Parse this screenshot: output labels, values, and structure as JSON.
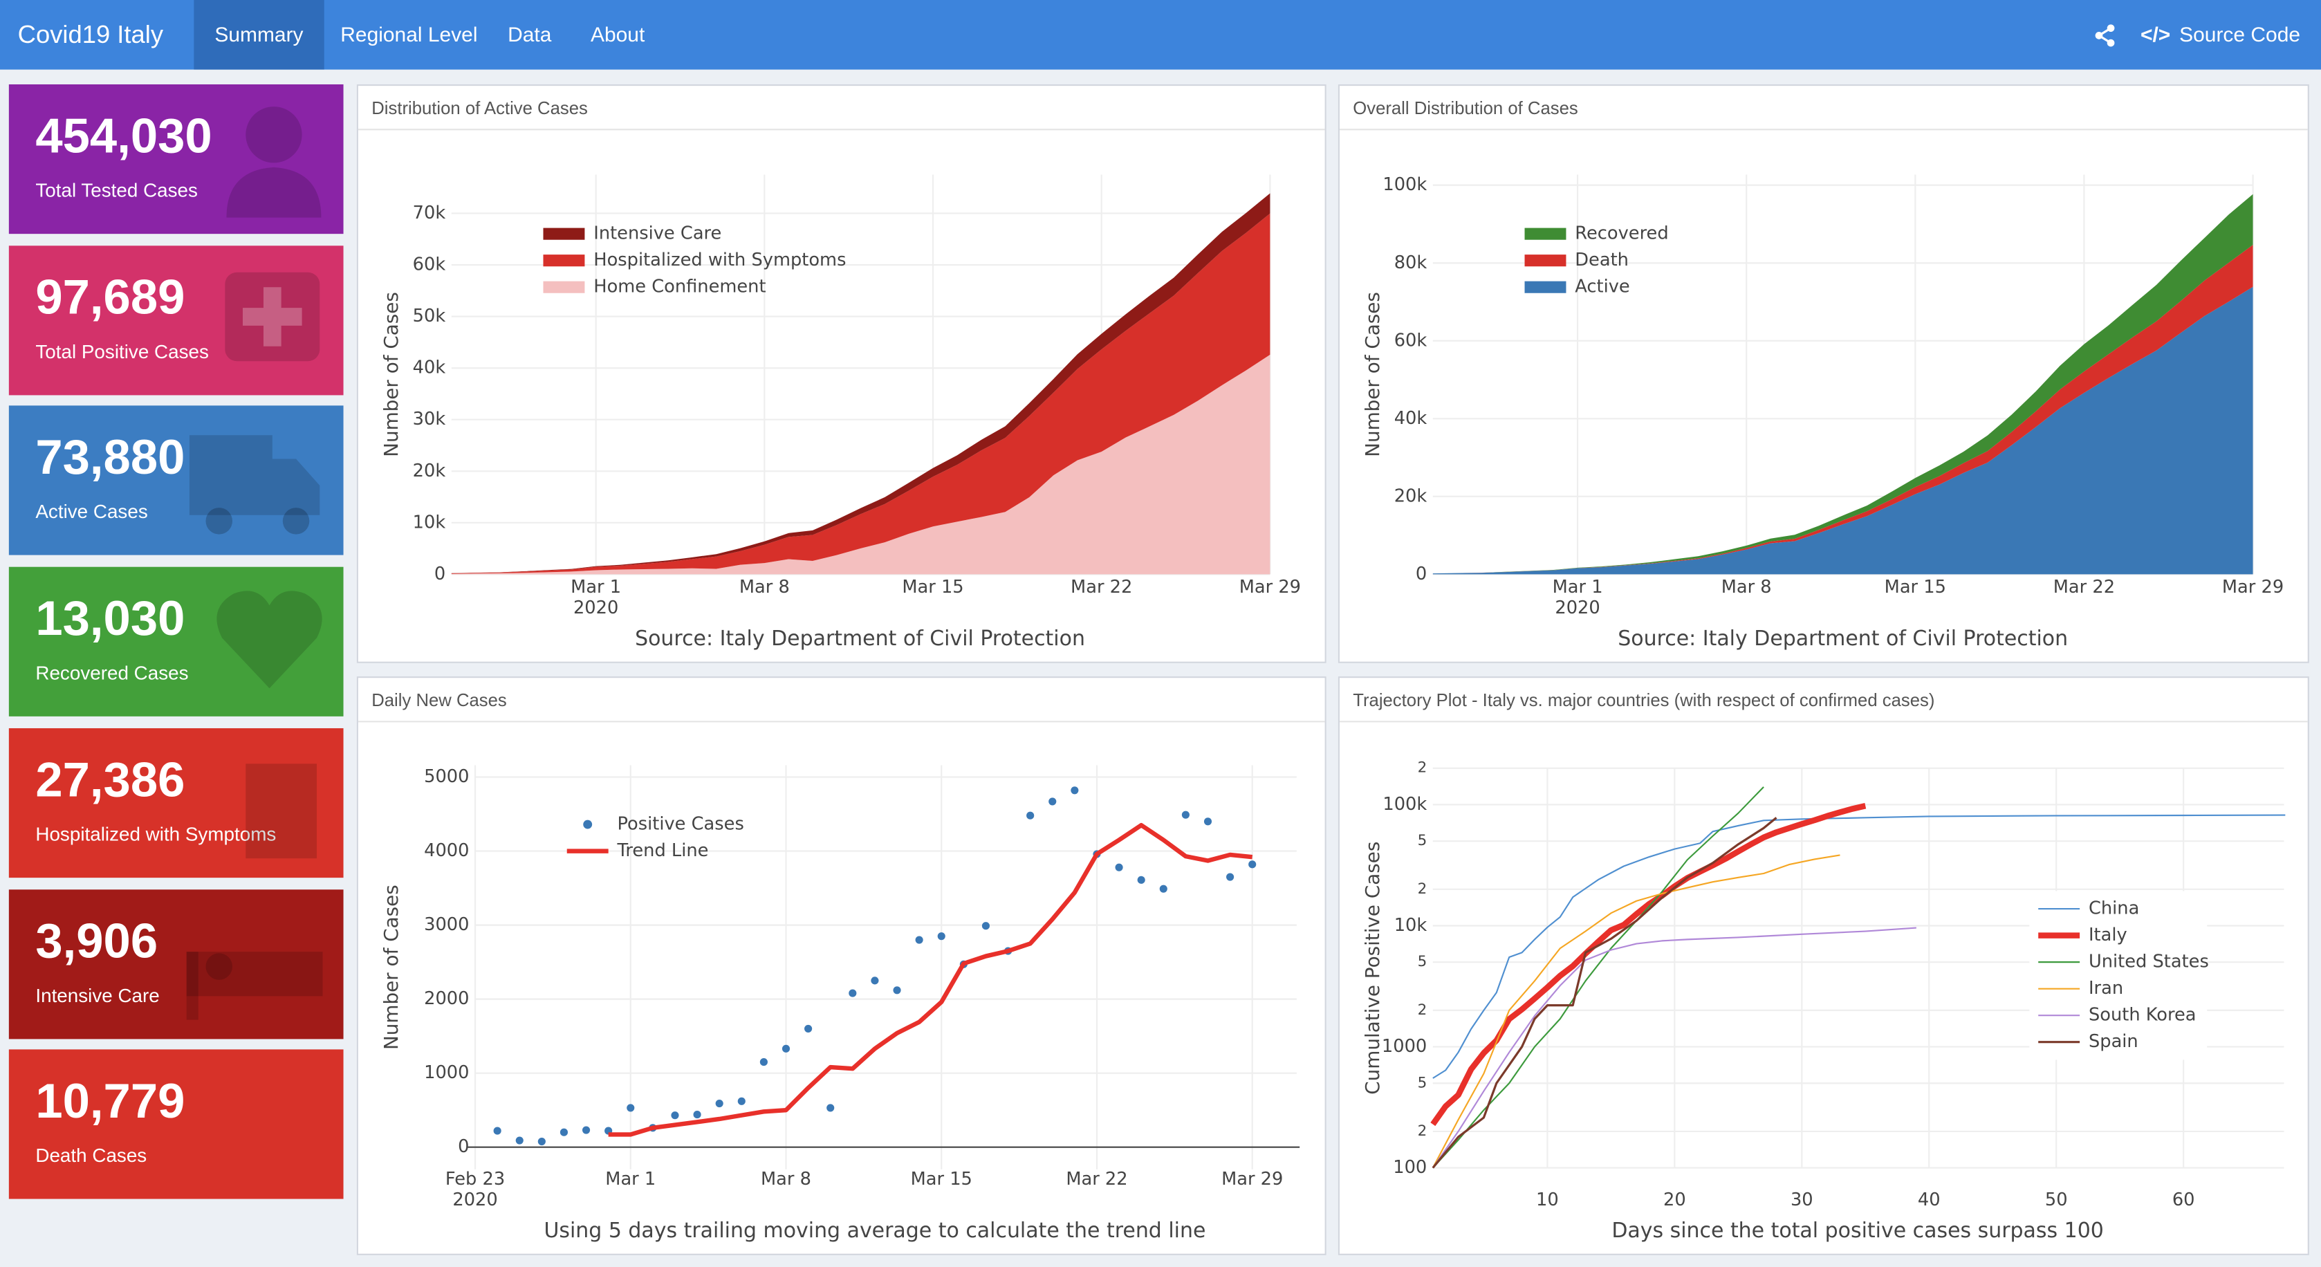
{
  "navbar": {
    "brand": "Covid19 Italy",
    "tabs": [
      "Summary",
      "Regional Level",
      "Data",
      "About"
    ],
    "active_tab": 0,
    "source_code": "Source Code"
  },
  "value_boxes": [
    {
      "value": "454,030",
      "label": "Total Tested Cases",
      "color": "#8a24a6"
    },
    {
      "value": "97,689",
      "label": "Total Positive Cases",
      "color": "#d3326a"
    },
    {
      "value": "73,880",
      "label": "Active Cases",
      "color": "#3c7dc2"
    },
    {
      "value": "13,030",
      "label": "Recovered Cases",
      "color": "#43a03a"
    },
    {
      "value": "27,386",
      "label": "Hospitalized with Symptoms",
      "color": "#d73229"
    },
    {
      "value": "3,906",
      "label": "Intensive Care",
      "color": "#a11b18"
    },
    {
      "value": "10,779",
      "label": "Death Cases",
      "color": "#d73229"
    }
  ],
  "chart_data": [
    {
      "type": "area",
      "title": "Distribution of Active Cases",
      "caption": "Source: Italy Department of Civil Protection",
      "ylabel": "Number of Cases",
      "legend": "top-left",
      "grid": true,
      "x": [
        "2020-02-24",
        "2020-02-25",
        "2020-02-26",
        "2020-02-27",
        "2020-02-28",
        "2020-02-29",
        "2020-03-01",
        "2020-03-02",
        "2020-03-03",
        "2020-03-04",
        "2020-03-05",
        "2020-03-06",
        "2020-03-07",
        "2020-03-08",
        "2020-03-09",
        "2020-03-10",
        "2020-03-11",
        "2020-03-12",
        "2020-03-13",
        "2020-03-14",
        "2020-03-15",
        "2020-03-16",
        "2020-03-17",
        "2020-03-18",
        "2020-03-19",
        "2020-03-20",
        "2020-03-21",
        "2020-03-22",
        "2020-03-23",
        "2020-03-24",
        "2020-03-25",
        "2020-03-26",
        "2020-03-27",
        "2020-03-28",
        "2020-03-29"
      ],
      "xlim": [
        "2020-02-24",
        "2020-03-29"
      ],
      "xticks": [
        {
          "value": "2020-03-01",
          "label": "Mar 1",
          "year": "2020"
        },
        {
          "value": "2020-03-08",
          "label": "Mar 8"
        },
        {
          "value": "2020-03-15",
          "label": "Mar 15"
        },
        {
          "value": "2020-03-22",
          "label": "Mar 22"
        },
        {
          "value": "2020-03-29",
          "label": "Mar 29"
        }
      ],
      "ylim": [
        0,
        77500
      ],
      "yticks": [
        0,
        {
          "value": 10000,
          "label": "10k"
        },
        {
          "value": 20000,
          "label": "20k"
        },
        {
          "value": 30000,
          "label": "30k"
        },
        {
          "value": 40000,
          "label": "40k"
        },
        {
          "value": 50000,
          "label": "50k"
        },
        {
          "value": 60000,
          "label": "60k"
        },
        {
          "value": 70000,
          "label": "70k"
        }
      ],
      "series": [
        {
          "name": "Intensive Care",
          "color": "#8e1b17",
          "values": [
            26,
            35,
            36,
            56,
            64,
            105,
            140,
            166,
            229,
            295,
            351,
            462,
            567,
            650,
            733,
            877,
            1028,
            1153,
            1328,
            1518,
            1672,
            1851,
            2060,
            2257,
            2498,
            2655,
            2857,
            3009,
            3204,
            3396,
            3489,
            3612,
            3732,
            3856,
            3906
          ]
        },
        {
          "name": "Hospitalized with Symptoms",
          "color": "#d7302a",
          "values": [
            101,
            114,
            128,
            248,
            345,
            401,
            639,
            742,
            1034,
            1346,
            1790,
            2394,
            2651,
            3557,
            4316,
            5038,
            5838,
            6650,
            7426,
            8372,
            9663,
            11025,
            12894,
            14363,
            15757,
            16020,
            17708,
            19846,
            20692,
            21937,
            23112,
            24753,
            26029,
            26676,
            27386
          ]
        },
        {
          "name": "Home Confinement",
          "color": "#f4bfbf",
          "values": [
            94,
            162,
            221,
            284,
            412,
            543,
            798,
            927,
            1000,
            1065,
            1155,
            1060,
            1843,
            2180,
            2936,
            2599,
            3724,
            5036,
            6201,
            7860,
            9268,
            10197,
            11108,
            12090,
            14935,
            19185,
            22116,
            23783,
            26522,
            28697,
            30920,
            33648,
            36653,
            39533,
            42588
          ]
        }
      ]
    },
    {
      "type": "area",
      "title": "Overall Distribution of Cases",
      "caption": "Source: Italy Department of Civil Protection",
      "ylabel": "Number of Cases",
      "legend": "top-left",
      "grid": true,
      "x": [
        "2020-02-24",
        "2020-02-25",
        "2020-02-26",
        "2020-02-27",
        "2020-02-28",
        "2020-02-29",
        "2020-03-01",
        "2020-03-02",
        "2020-03-03",
        "2020-03-04",
        "2020-03-05",
        "2020-03-06",
        "2020-03-07",
        "2020-03-08",
        "2020-03-09",
        "2020-03-10",
        "2020-03-11",
        "2020-03-12",
        "2020-03-13",
        "2020-03-14",
        "2020-03-15",
        "2020-03-16",
        "2020-03-17",
        "2020-03-18",
        "2020-03-19",
        "2020-03-20",
        "2020-03-21",
        "2020-03-22",
        "2020-03-23",
        "2020-03-24",
        "2020-03-25",
        "2020-03-26",
        "2020-03-27",
        "2020-03-28",
        "2020-03-29"
      ],
      "xlim": [
        "2020-02-24",
        "2020-03-29"
      ],
      "xticks": [
        {
          "value": "2020-03-01",
          "label": "Mar 1",
          "year": "2020"
        },
        {
          "value": "2020-03-08",
          "label": "Mar 8"
        },
        {
          "value": "2020-03-15",
          "label": "Mar 15"
        },
        {
          "value": "2020-03-22",
          "label": "Mar 22"
        },
        {
          "value": "2020-03-29",
          "label": "Mar 29"
        }
      ],
      "ylim": [
        0,
        102700
      ],
      "yticks": [
        0,
        {
          "value": 20000,
          "label": "20k"
        },
        {
          "value": 40000,
          "label": "40k"
        },
        {
          "value": 60000,
          "label": "60k"
        },
        {
          "value": 80000,
          "label": "80k"
        },
        {
          "value": 100000,
          "label": "100k"
        }
      ],
      "series": [
        {
          "name": "Recovered",
          "color": "#3f8c33",
          "values": [
            1,
            1,
            3,
            45,
            46,
            50,
            83,
            149,
            160,
            276,
            414,
            523,
            589,
            622,
            724,
            1004,
            1045,
            1258,
            1439,
            1966,
            2335,
            2749,
            2941,
            4025,
            4440,
            5129,
            6072,
            7024,
            7432,
            8326,
            9362,
            10361,
            10950,
            12384,
            13030
          ]
        },
        {
          "name": "Death",
          "color": "#d7302a",
          "values": [
            7,
            10,
            12,
            17,
            21,
            29,
            34,
            52,
            79,
            107,
            148,
            197,
            233,
            366,
            463,
            631,
            827,
            1016,
            1266,
            1441,
            1809,
            2158,
            2503,
            2978,
            3405,
            4032,
            4825,
            5476,
            6077,
            6820,
            7503,
            8165,
            9134,
            10023,
            10779
          ]
        },
        {
          "name": "Active",
          "color": "#3a78b5",
          "values": [
            221,
            311,
            385,
            588,
            821,
            1049,
            1577,
            1835,
            2263,
            2706,
            3296,
            3916,
            5061,
            6387,
            7985,
            8514,
            10590,
            12839,
            14955,
            17750,
            20603,
            23073,
            26062,
            28710,
            33190,
            37860,
            42681,
            46638,
            50418,
            54030,
            57521,
            62013,
            66414,
            70065,
            73880
          ]
        }
      ]
    },
    {
      "type": "line",
      "title": "Daily New Cases",
      "caption": "Using 5 days trailing moving average to calculate the trend line",
      "ylabel": "Number of Cases",
      "legend": "top-left",
      "grid": true,
      "x": [
        "2020-02-24",
        "2020-02-25",
        "2020-02-26",
        "2020-02-27",
        "2020-02-28",
        "2020-02-29",
        "2020-03-01",
        "2020-03-02",
        "2020-03-03",
        "2020-03-04",
        "2020-03-05",
        "2020-03-06",
        "2020-03-07",
        "2020-03-08",
        "2020-03-09",
        "2020-03-10",
        "2020-03-11",
        "2020-03-12",
        "2020-03-13",
        "2020-03-14",
        "2020-03-15",
        "2020-03-16",
        "2020-03-17",
        "2020-03-18",
        "2020-03-19",
        "2020-03-20",
        "2020-03-21",
        "2020-03-22",
        "2020-03-23",
        "2020-03-24",
        "2020-03-25",
        "2020-03-26",
        "2020-03-27",
        "2020-03-28",
        "2020-03-29"
      ],
      "xlim": [
        "2020-02-23",
        "2020-03-31"
      ],
      "xticks": [
        {
          "value": "2020-02-23",
          "label": "Feb 23",
          "year": "2020"
        },
        {
          "value": "2020-03-01",
          "label": "Mar 1"
        },
        {
          "value": "2020-03-08",
          "label": "Mar 8"
        },
        {
          "value": "2020-03-15",
          "label": "Mar 15"
        },
        {
          "value": "2020-03-22",
          "label": "Mar 22"
        },
        {
          "value": "2020-03-29",
          "label": "Mar 29"
        }
      ],
      "ylim": [
        -300,
        5160
      ],
      "yticks": [
        0,
        1000,
        2000,
        3000,
        4000,
        5000
      ],
      "series": [
        {
          "name": "Positive Cases",
          "color": "#3a78b5",
          "mode": "markers",
          "values": [
            220,
            90,
            75,
            200,
            230,
            220,
            530,
            260,
            430,
            440,
            590,
            620,
            1150,
            1330,
            1600,
            530,
            2080,
            2250,
            2120,
            2800,
            2850,
            2470,
            2990,
            2650,
            4480,
            4670,
            4820,
            3960,
            3780,
            3610,
            3490,
            4490,
            4400,
            3650,
            3820
          ]
        },
        {
          "name": "Trend Line",
          "color": "#e8302a",
          "mode": "lines",
          "width": 3,
          "values": [
            null,
            null,
            null,
            null,
            null,
            170,
            170,
            260,
            300,
            340,
            380,
            430,
            480,
            500,
            800,
            1080,
            1060,
            1330,
            1540,
            1690,
            1960,
            2480,
            2580,
            2650,
            2750,
            3080,
            3440,
            3960,
            4150,
            4350,
            4150,
            3930,
            3870,
            3950,
            3920
          ]
        }
      ]
    },
    {
      "type": "line",
      "title": "Trajectory Plot - Italy vs. major countries (with respect of confirmed cases)",
      "xlabel": "Days since the total positive cases surpass 100",
      "ylabel": "Cumulative Positive Cases",
      "legend": "right",
      "grid": true,
      "ylog": true,
      "xlim": [
        1,
        67.9
      ],
      "xticks": [
        10,
        20,
        30,
        40,
        50,
        60
      ],
      "ylim": [
        100,
        200000
      ],
      "yticks": [
        100,
        {
          "value": 200,
          "label": "2"
        },
        {
          "value": 500,
          "label": "5"
        },
        1000,
        {
          "value": 2000,
          "label": "2"
        },
        {
          "value": 5000,
          "label": "5"
        },
        {
          "value": 10000,
          "label": "10k"
        },
        {
          "value": 20000,
          "label": "2"
        },
        {
          "value": 50000,
          "label": "5"
        },
        {
          "value": 100000,
          "label": "100k"
        },
        {
          "value": 200000,
          "label": "2"
        }
      ],
      "series": [
        {
          "name": "China",
          "color": "#4f8fd0",
          "mode": "lines",
          "width": 1,
          "x": [
            1,
            2,
            3,
            4,
            5,
            6,
            7,
            8,
            9,
            10,
            11,
            12,
            14,
            16,
            18,
            20,
            22,
            23,
            25,
            27,
            30,
            35,
            40,
            50,
            60,
            68
          ],
          "values": [
            550,
            640,
            900,
            1400,
            2000,
            2800,
            5500,
            6000,
            7700,
            9700,
            11800,
            17200,
            24000,
            31000,
            37000,
            43000,
            48000,
            60000,
            67000,
            74000,
            76000,
            78000,
            80000,
            81000,
            81500,
            82000
          ]
        },
        {
          "name": "Italy",
          "color": "#e8302a",
          "mode": "lines",
          "width": 4,
          "x": [
            1,
            2,
            3,
            4,
            5,
            6,
            7,
            8,
            9,
            10,
            11,
            12,
            13,
            14,
            15,
            16,
            17,
            18,
            19,
            20,
            21,
            22,
            23,
            24,
            25,
            26,
            27,
            28,
            29,
            30,
            31,
            32,
            33,
            34,
            35
          ],
          "values": [
            229,
            322,
            400,
            650,
            888,
            1128,
            1694,
            2036,
            2502,
            3089,
            3858,
            4636,
            5883,
            7375,
            9172,
            10149,
            12462,
            15113,
            17660,
            21157,
            24747,
            27980,
            31506,
            35713,
            41035,
            47021,
            53578,
            59138,
            63927,
            69176,
            74386,
            80539,
            86498,
            92472,
            97689
          ]
        },
        {
          "name": "United States",
          "color": "#3c9a3c",
          "mode": "lines",
          "width": 1,
          "x": [
            1,
            3,
            5,
            7,
            9,
            11,
            13,
            15,
            17,
            19,
            21,
            23,
            25,
            27
          ],
          "values": [
            100,
            170,
            300,
            500,
            1000,
            1700,
            3500,
            6500,
            11000,
            19000,
            35000,
            55000,
            85000,
            140000
          ]
        },
        {
          "name": "Iran",
          "color": "#f5a623",
          "mode": "lines",
          "width": 1,
          "x": [
            1,
            3,
            5,
            7,
            9,
            11,
            13,
            15,
            17,
            19,
            21,
            23,
            25,
            27,
            29,
            31,
            33
          ],
          "values": [
            100,
            250,
            600,
            2000,
            3500,
            6500,
            9000,
            12700,
            16000,
            18400,
            20600,
            23000,
            25000,
            27000,
            32000,
            35400,
            38300
          ]
        },
        {
          "name": "South Korea",
          "color": "#b088d8",
          "mode": "lines",
          "width": 1,
          "x": [
            1,
            3,
            5,
            7,
            9,
            11,
            13,
            15,
            17,
            19,
            21,
            25,
            30,
            35,
            39
          ],
          "values": [
            100,
            200,
            430,
            900,
            1800,
            3200,
            5200,
            6300,
            7100,
            7500,
            7700,
            8000,
            8500,
            9000,
            9600
          ]
        },
        {
          "name": "Spain",
          "color": "#7b3a2a",
          "mode": "lines",
          "width": 1.5,
          "x": [
            1,
            3,
            5,
            6,
            8,
            9,
            10,
            12,
            13,
            15,
            17,
            19,
            21,
            23,
            25,
            27,
            28
          ],
          "values": [
            100,
            180,
            260,
            500,
            1000,
            1700,
            2200,
            2200,
            6000,
            7800,
            11000,
            17000,
            25000,
            33000,
            47000,
            64000,
            78000
          ]
        }
      ]
    }
  ]
}
